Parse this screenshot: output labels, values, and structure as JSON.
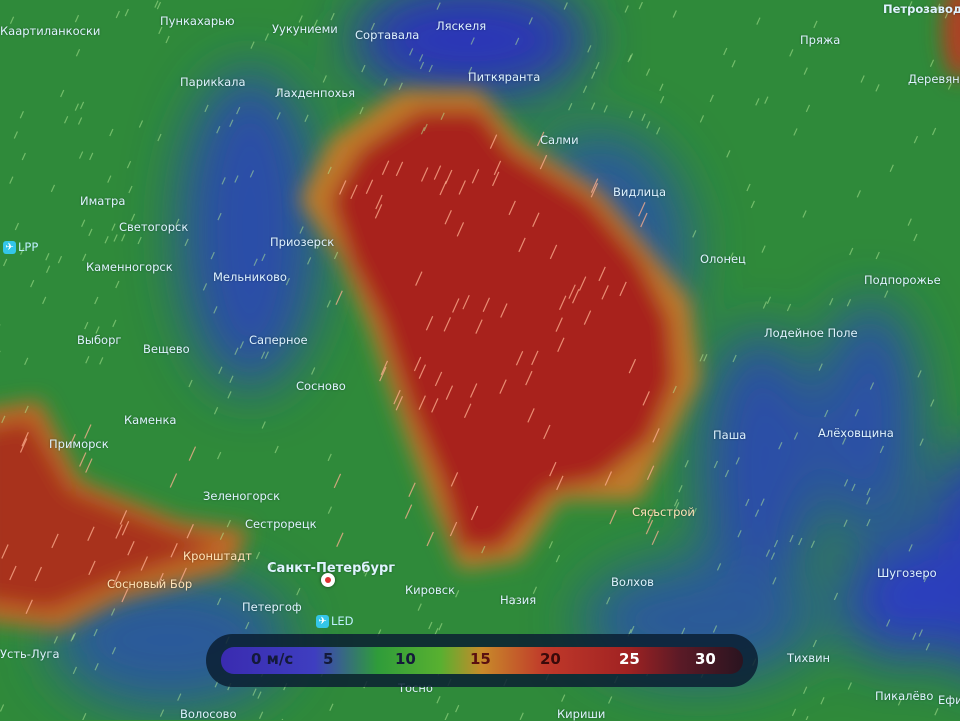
{
  "legend": {
    "unit_label": "0 м/с",
    "ticks": [
      "5",
      "10",
      "15",
      "20",
      "25",
      "30"
    ],
    "gradient_colors": [
      "#3a2bb0",
      "#2f9c3a",
      "#c88a2a",
      "#c0392a",
      "#a02222",
      "#2a1420"
    ]
  },
  "cities": {
    "kaartilankoski": "Каартиланкоски",
    "punkaharju": "Пункахарью",
    "uukuniemi": "Уукуниеми",
    "sortavala": "Сортавала",
    "lahdenpohja": "Лахденпохья",
    "parikkala": "Парикkала",
    "laskela": "Ляскеля",
    "pitkyaranta": "Питкяранта",
    "salmi": "Салми",
    "vidlitsa": "Видлица",
    "olonets": "Олонец",
    "pryazha": "Пряжа",
    "petrozavodsk": "Петрозаводск",
    "derevyannoe": "Деревянное",
    "imatra": "Иматра",
    "svetogorsk": "Светогорск",
    "priozersk": "Приозерск",
    "kamennogorsk": "Каменногорск",
    "melnikovo": "Мельниково",
    "vyborg": "Выборг",
    "veshchevo": "Вещево",
    "sapernoe": "Саперное",
    "sosnovo": "Сосново",
    "kamenka": "Каменка",
    "primorsk": "Приморск",
    "zelenogorsk": "Зеленогорск",
    "sestroretsk": "Сестрорецк",
    "kronshtadt": "Кронштадт",
    "spb": "Санкт-Петербург",
    "sosnovy_bor": "Сосновый Бор",
    "peterhof": "Петергоф",
    "kirovsk": "Кировск",
    "naziya": "Назия",
    "volkhov": "Волхов",
    "syasstroy": "Сясьстрой",
    "pasha": "Паша",
    "alekhovshchina": "Алёховщина",
    "lodeynoe_pole": "Лодейное Поле",
    "podporozhye": "Подпорожье",
    "shugozero": "Шугозеро",
    "tikhvin": "Тихвин",
    "pikalevo": "Пикалёво",
    "efimovsky": "Ефи",
    "ust_luga": "Усть-Луга",
    "volosovo": "Волосово",
    "kirishi": "Кириши",
    "tosno": "Тосно"
  },
  "airports": {
    "lpp": "LPP",
    "led": "LED"
  },
  "colors": {
    "calm": "#3a2bb0",
    "moderate": "#2f9c3a",
    "strong": "#a02222"
  }
}
